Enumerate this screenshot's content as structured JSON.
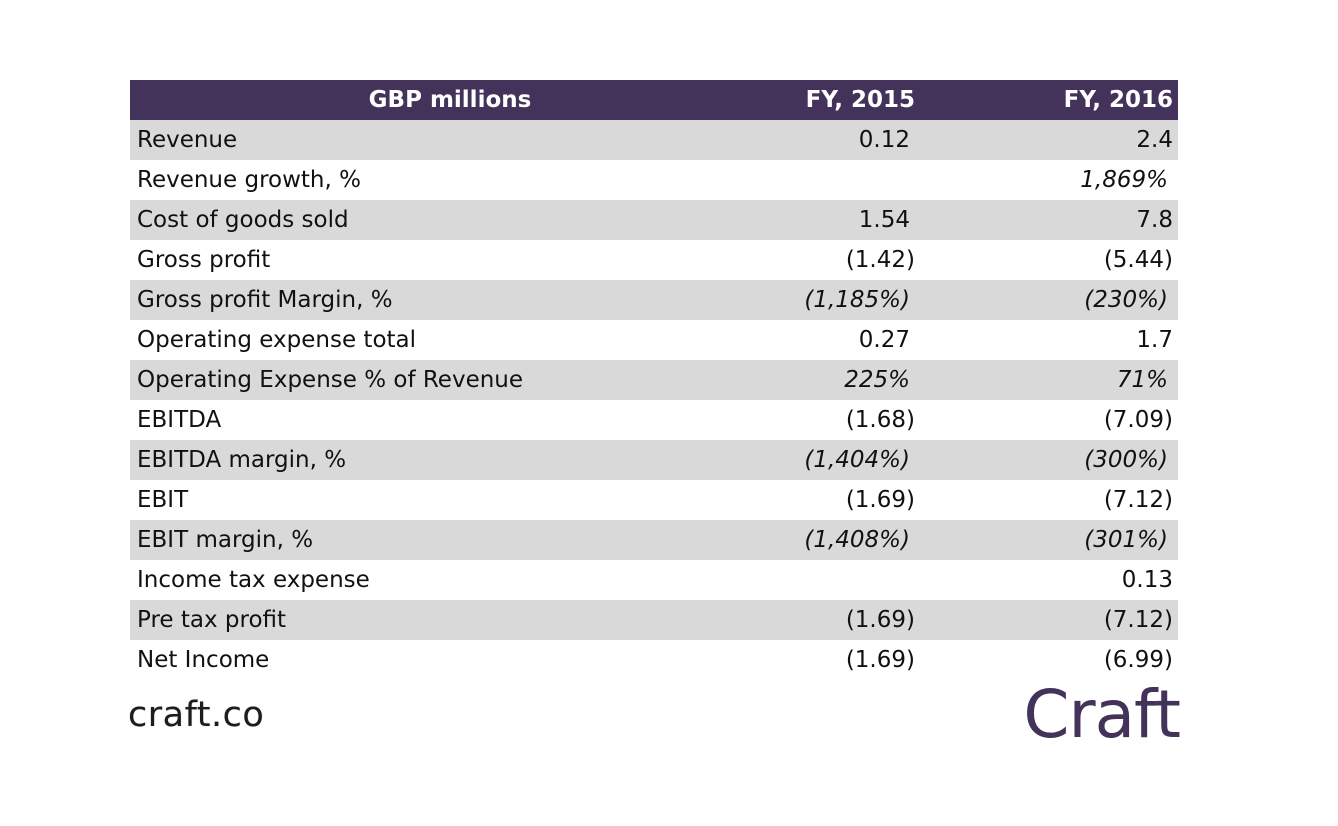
{
  "table": {
    "headers": [
      "GBP millions",
      "FY, 2015",
      "FY, 2016"
    ],
    "rows": [
      {
        "label": "Revenue",
        "fy2015": "0.12",
        "fy2016": "2.4"
      },
      {
        "label": "Revenue growth, %",
        "fy2015": "",
        "fy2016": "1,869%"
      },
      {
        "label": "Cost of goods sold",
        "fy2015": "1.54",
        "fy2016": "7.8"
      },
      {
        "label": "Gross profit",
        "fy2015": "(1.42)",
        "fy2016": "(5.44)"
      },
      {
        "label": "Gross profit Margin, %",
        "fy2015": "(1,185%)",
        "fy2016": "(230%)"
      },
      {
        "label": "Operating expense total",
        "fy2015": "0.27",
        "fy2016": "1.7"
      },
      {
        "label": "Operating Expense % of Revenue",
        "fy2015": "225%",
        "fy2016": "71%"
      },
      {
        "label": "EBITDA",
        "fy2015": "(1.68)",
        "fy2016": "(7.09)"
      },
      {
        "label": "EBITDA margin, %",
        "fy2015": "(1,404%)",
        "fy2016": "(300%)"
      },
      {
        "label": "EBIT",
        "fy2015": "(1.69)",
        "fy2016": "(7.12)"
      },
      {
        "label": "EBIT margin, %",
        "fy2015": "(1,408%)",
        "fy2016": "(301%)"
      },
      {
        "label": "Income tax expense",
        "fy2015": "",
        "fy2016": "0.13"
      },
      {
        "label": "Pre tax profit",
        "fy2015": "(1.69)",
        "fy2016": "(7.12)"
      },
      {
        "label": "Net Income",
        "fy2015": "(1.69)",
        "fy2016": "(6.99)"
      }
    ]
  },
  "footer": {
    "source_text": "craft.co",
    "brand_logo": "Craft"
  },
  "colors": {
    "header_bg": "#43325a",
    "header_text": "#ffffff",
    "row_shade": "#d9d9d9",
    "brand": "#43325a"
  }
}
